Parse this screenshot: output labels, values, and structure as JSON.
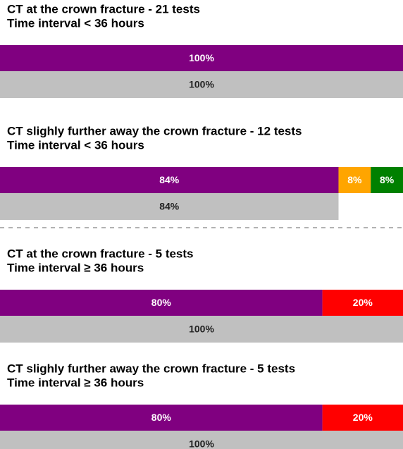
{
  "chart_data": [
    {
      "type": "bar",
      "title": "CT at the crown fracture - 21 tests",
      "subtitle": "Time interval < 36 hours",
      "xlim": [
        0,
        100
      ],
      "bars": [
        {
          "segments": [
            {
              "color": "#800080",
              "value": 100,
              "value_label": "100%"
            }
          ]
        },
        {
          "segments": [
            {
              "color": "#c0c0c0",
              "value": 100,
              "value_label": "100%"
            }
          ]
        }
      ]
    },
    {
      "type": "bar",
      "title": "CT slighly further away the crown fracture - 12 tests",
      "subtitle": "Time interval < 36 hours",
      "xlim": [
        0,
        100
      ],
      "bars": [
        {
          "segments": [
            {
              "color": "#800080",
              "value": 84,
              "value_label": "84%"
            },
            {
              "color": "#ffa500",
              "value": 8,
              "value_label": "8%"
            },
            {
              "color": "#008000",
              "value": 8,
              "value_label": "8%"
            }
          ]
        },
        {
          "segments": [
            {
              "color": "#c0c0c0",
              "value": 84,
              "value_label": "84%"
            }
          ]
        }
      ]
    },
    {
      "type": "bar",
      "title": "CT at the crown fracture - 5 tests",
      "subtitle": "Time interval ≥ 36 hours",
      "xlim": [
        0,
        100
      ],
      "bars": [
        {
          "segments": [
            {
              "color": "#800080",
              "value": 80,
              "value_label": "80%"
            },
            {
              "color": "#ff0000",
              "value": 20,
              "value_label": "20%"
            }
          ]
        },
        {
          "segments": [
            {
              "color": "#c0c0c0",
              "value": 100,
              "value_label": "100%"
            }
          ]
        }
      ]
    },
    {
      "type": "bar",
      "title": "CT slighly further away the crown fracture - 5 tests",
      "subtitle": "Time interval ≥ 36 hours",
      "xlim": [
        0,
        100
      ],
      "bars": [
        {
          "segments": [
            {
              "color": "#800080",
              "value": 80,
              "value_label": "80%"
            },
            {
              "color": "#ff0000",
              "value": 20,
              "value_label": "20%"
            }
          ]
        },
        {
          "segments": [
            {
              "color": "#c0c0c0",
              "value": 100,
              "value_label": "100%"
            }
          ]
        }
      ]
    }
  ]
}
